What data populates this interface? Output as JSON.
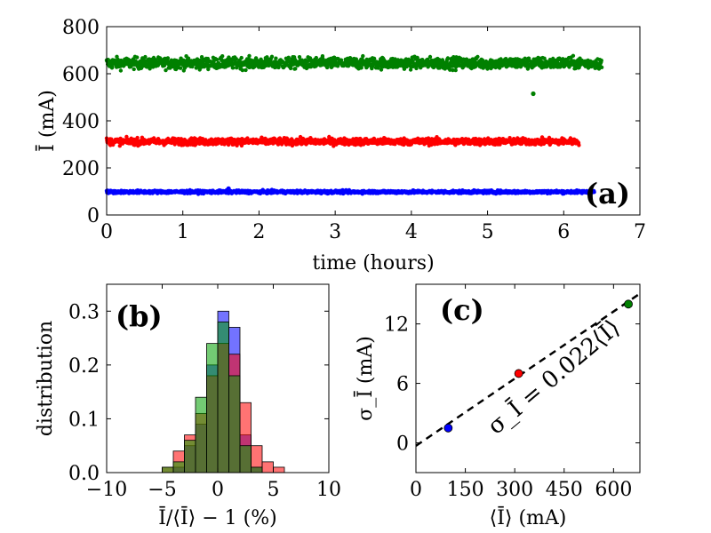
{
  "chart_data": [
    {
      "panel": "(a)",
      "type": "scatter",
      "xlabel": "time (hours)",
      "ylabel": "Ī (mA)",
      "xlim": [
        0,
        7
      ],
      "ylim": [
        0,
        800
      ],
      "xticks": [
        "0",
        "1",
        "2",
        "3",
        "4",
        "5",
        "6",
        "7"
      ],
      "yticks": [
        "0",
        "200",
        "400",
        "600",
        "800"
      ],
      "series": [
        {
          "color": "#008000",
          "mean": 645,
          "spread": 12,
          "t_end": 6.5,
          "outlier": [
            5.6,
            515
          ]
        },
        {
          "color": "#ff0000",
          "mean": 312,
          "spread": 7,
          "t_end": 6.2
        },
        {
          "color": "#0000ff",
          "mean": 98,
          "spread": 3,
          "t_end": 6.4,
          "outlier": [
            1.6,
            112
          ]
        }
      ]
    },
    {
      "panel": "(b)",
      "type": "bar",
      "xlabel": "Ī/⟨Ī⟩ − 1 (%)",
      "ylabel": "distribution",
      "xlim": [
        -10,
        10
      ],
      "ylim": [
        0,
        0.35
      ],
      "xticks": [
        "−10",
        "−5",
        "0",
        "5",
        "10"
      ],
      "yticks": [
        "0.0",
        "0.1",
        "0.2",
        "0.3"
      ],
      "series": [
        {
          "color": "#0000ff",
          "bins": [
            [
              -4,
              0.01
            ],
            [
              -3,
              0.05
            ],
            [
              -2,
              0.09
            ],
            [
              -1,
              0.2
            ],
            [
              0,
              0.3
            ],
            [
              1,
              0.27
            ],
            [
              2,
              0.07
            ],
            [
              3,
              0.01
            ]
          ]
        },
        {
          "color": "#ff0000",
          "bins": [
            [
              -5,
              0.01
            ],
            [
              -4,
              0.04
            ],
            [
              -3,
              0.07
            ],
            [
              -2,
              0.11
            ],
            [
              -1,
              0.18
            ],
            [
              0,
              0.24
            ],
            [
              1,
              0.22
            ],
            [
              2,
              0.13
            ],
            [
              3,
              0.05
            ],
            [
              4,
              0.02
            ],
            [
              5,
              0.01
            ]
          ]
        },
        {
          "color": "#00a000",
          "bins": [
            [
              -5,
              0.01
            ],
            [
              -4,
              0.02
            ],
            [
              -3,
              0.06
            ],
            [
              -2,
              0.14
            ],
            [
              -1,
              0.24
            ],
            [
              0,
              0.28
            ],
            [
              1,
              0.18
            ],
            [
              2,
              0.05
            ],
            [
              3,
              0.01
            ]
          ]
        }
      ]
    },
    {
      "panel": "(c)",
      "type": "scatter",
      "xlabel": "⟨Ī⟩ (mA)",
      "ylabel": "σ_Ī (mA)",
      "xlim": [
        0,
        680
      ],
      "ylim": [
        -3,
        16
      ],
      "xticks": [
        "0",
        "150",
        "300",
        "450",
        "600"
      ],
      "yticks": [
        "0",
        "6",
        "12"
      ],
      "points": [
        {
          "x": 98,
          "y": 1.5,
          "color": "#0000ff"
        },
        {
          "x": 312,
          "y": 7.0,
          "color": "#ff0000"
        },
        {
          "x": 645,
          "y": 14.0,
          "color": "#008000"
        }
      ],
      "fit_slope": 0.022,
      "annotation": "σ_Ī = 0.022⟨Ī⟩"
    }
  ]
}
